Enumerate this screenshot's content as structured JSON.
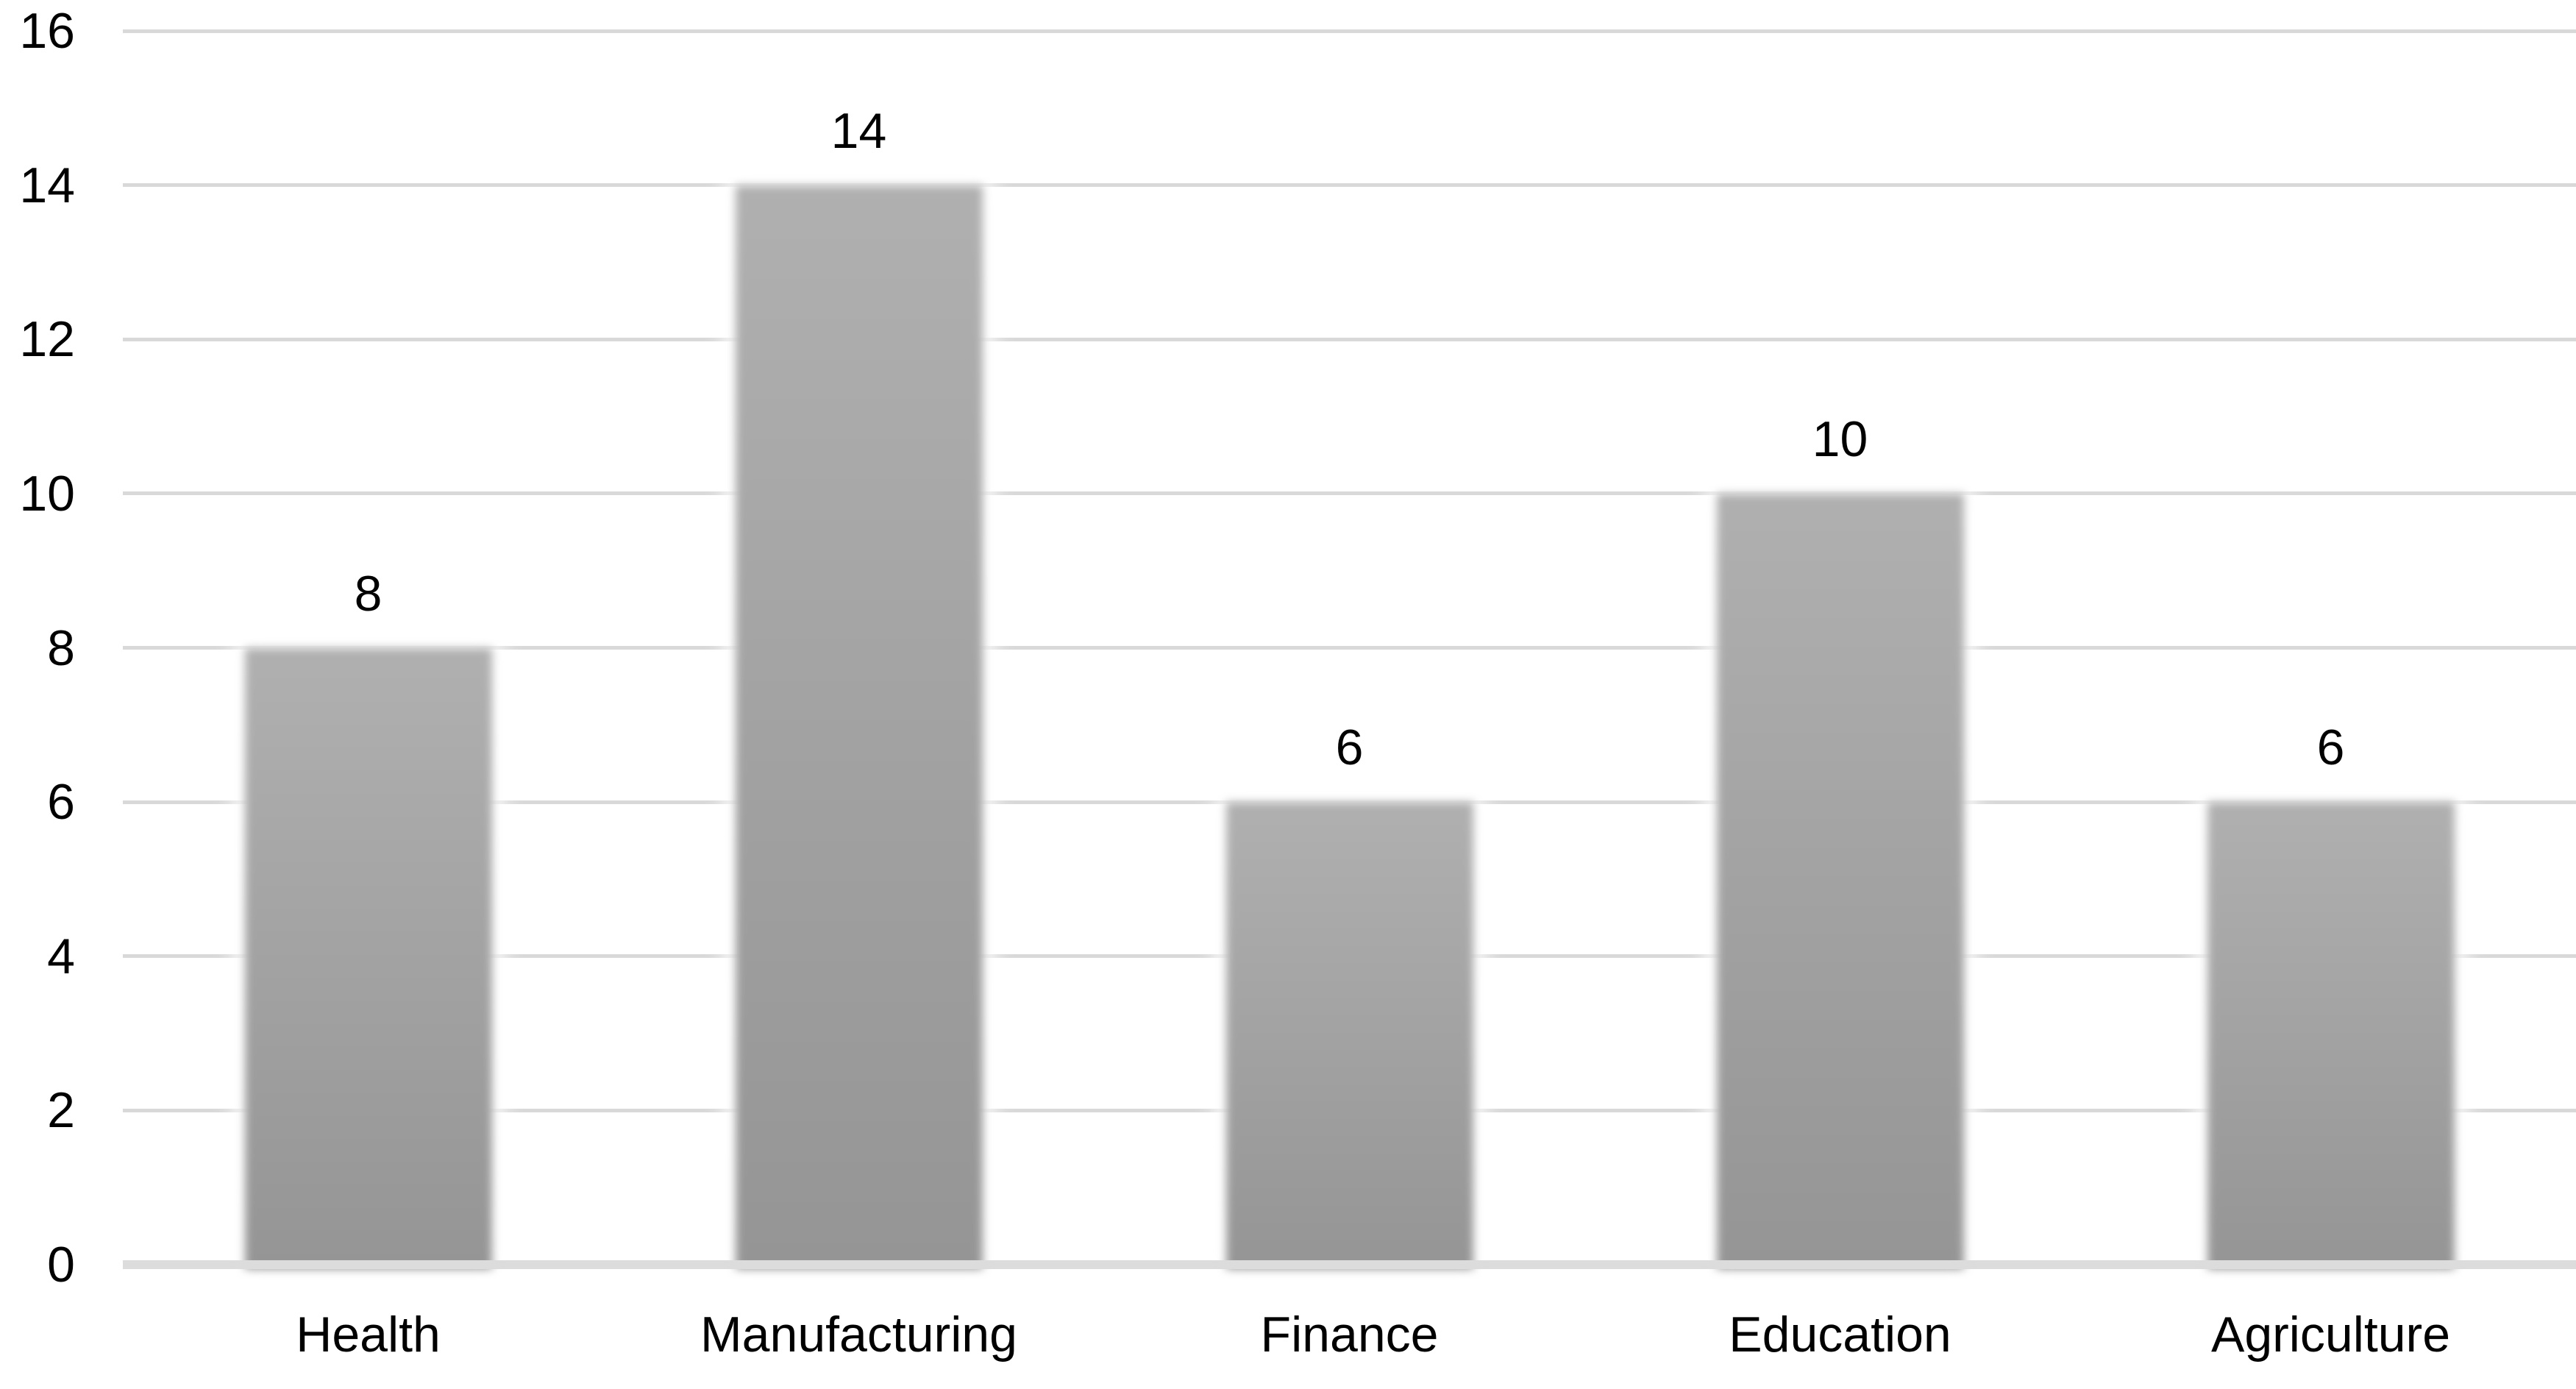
{
  "chart_data": {
    "type": "bar",
    "title": "",
    "xlabel": "",
    "ylabel": "",
    "categories": [
      "Health",
      "Manufacturing",
      "Finance",
      "Education",
      "Agriculture"
    ],
    "values": [
      8,
      14,
      6,
      10,
      6
    ],
    "data_labels_shown": true,
    "ylim": [
      0,
      16
    ],
    "yticks": [
      0,
      2,
      4,
      6,
      8,
      10,
      12,
      14,
      16
    ],
    "grid": "horizontal",
    "legend": "none",
    "colors": {
      "bar_gradient_top": "#b0b0b0",
      "bar_gradient_bottom": "#959595",
      "gridline": "#d9d9d9",
      "axis_line": "#dcdcdc",
      "text": "#000000",
      "background": "#ffffff"
    }
  }
}
